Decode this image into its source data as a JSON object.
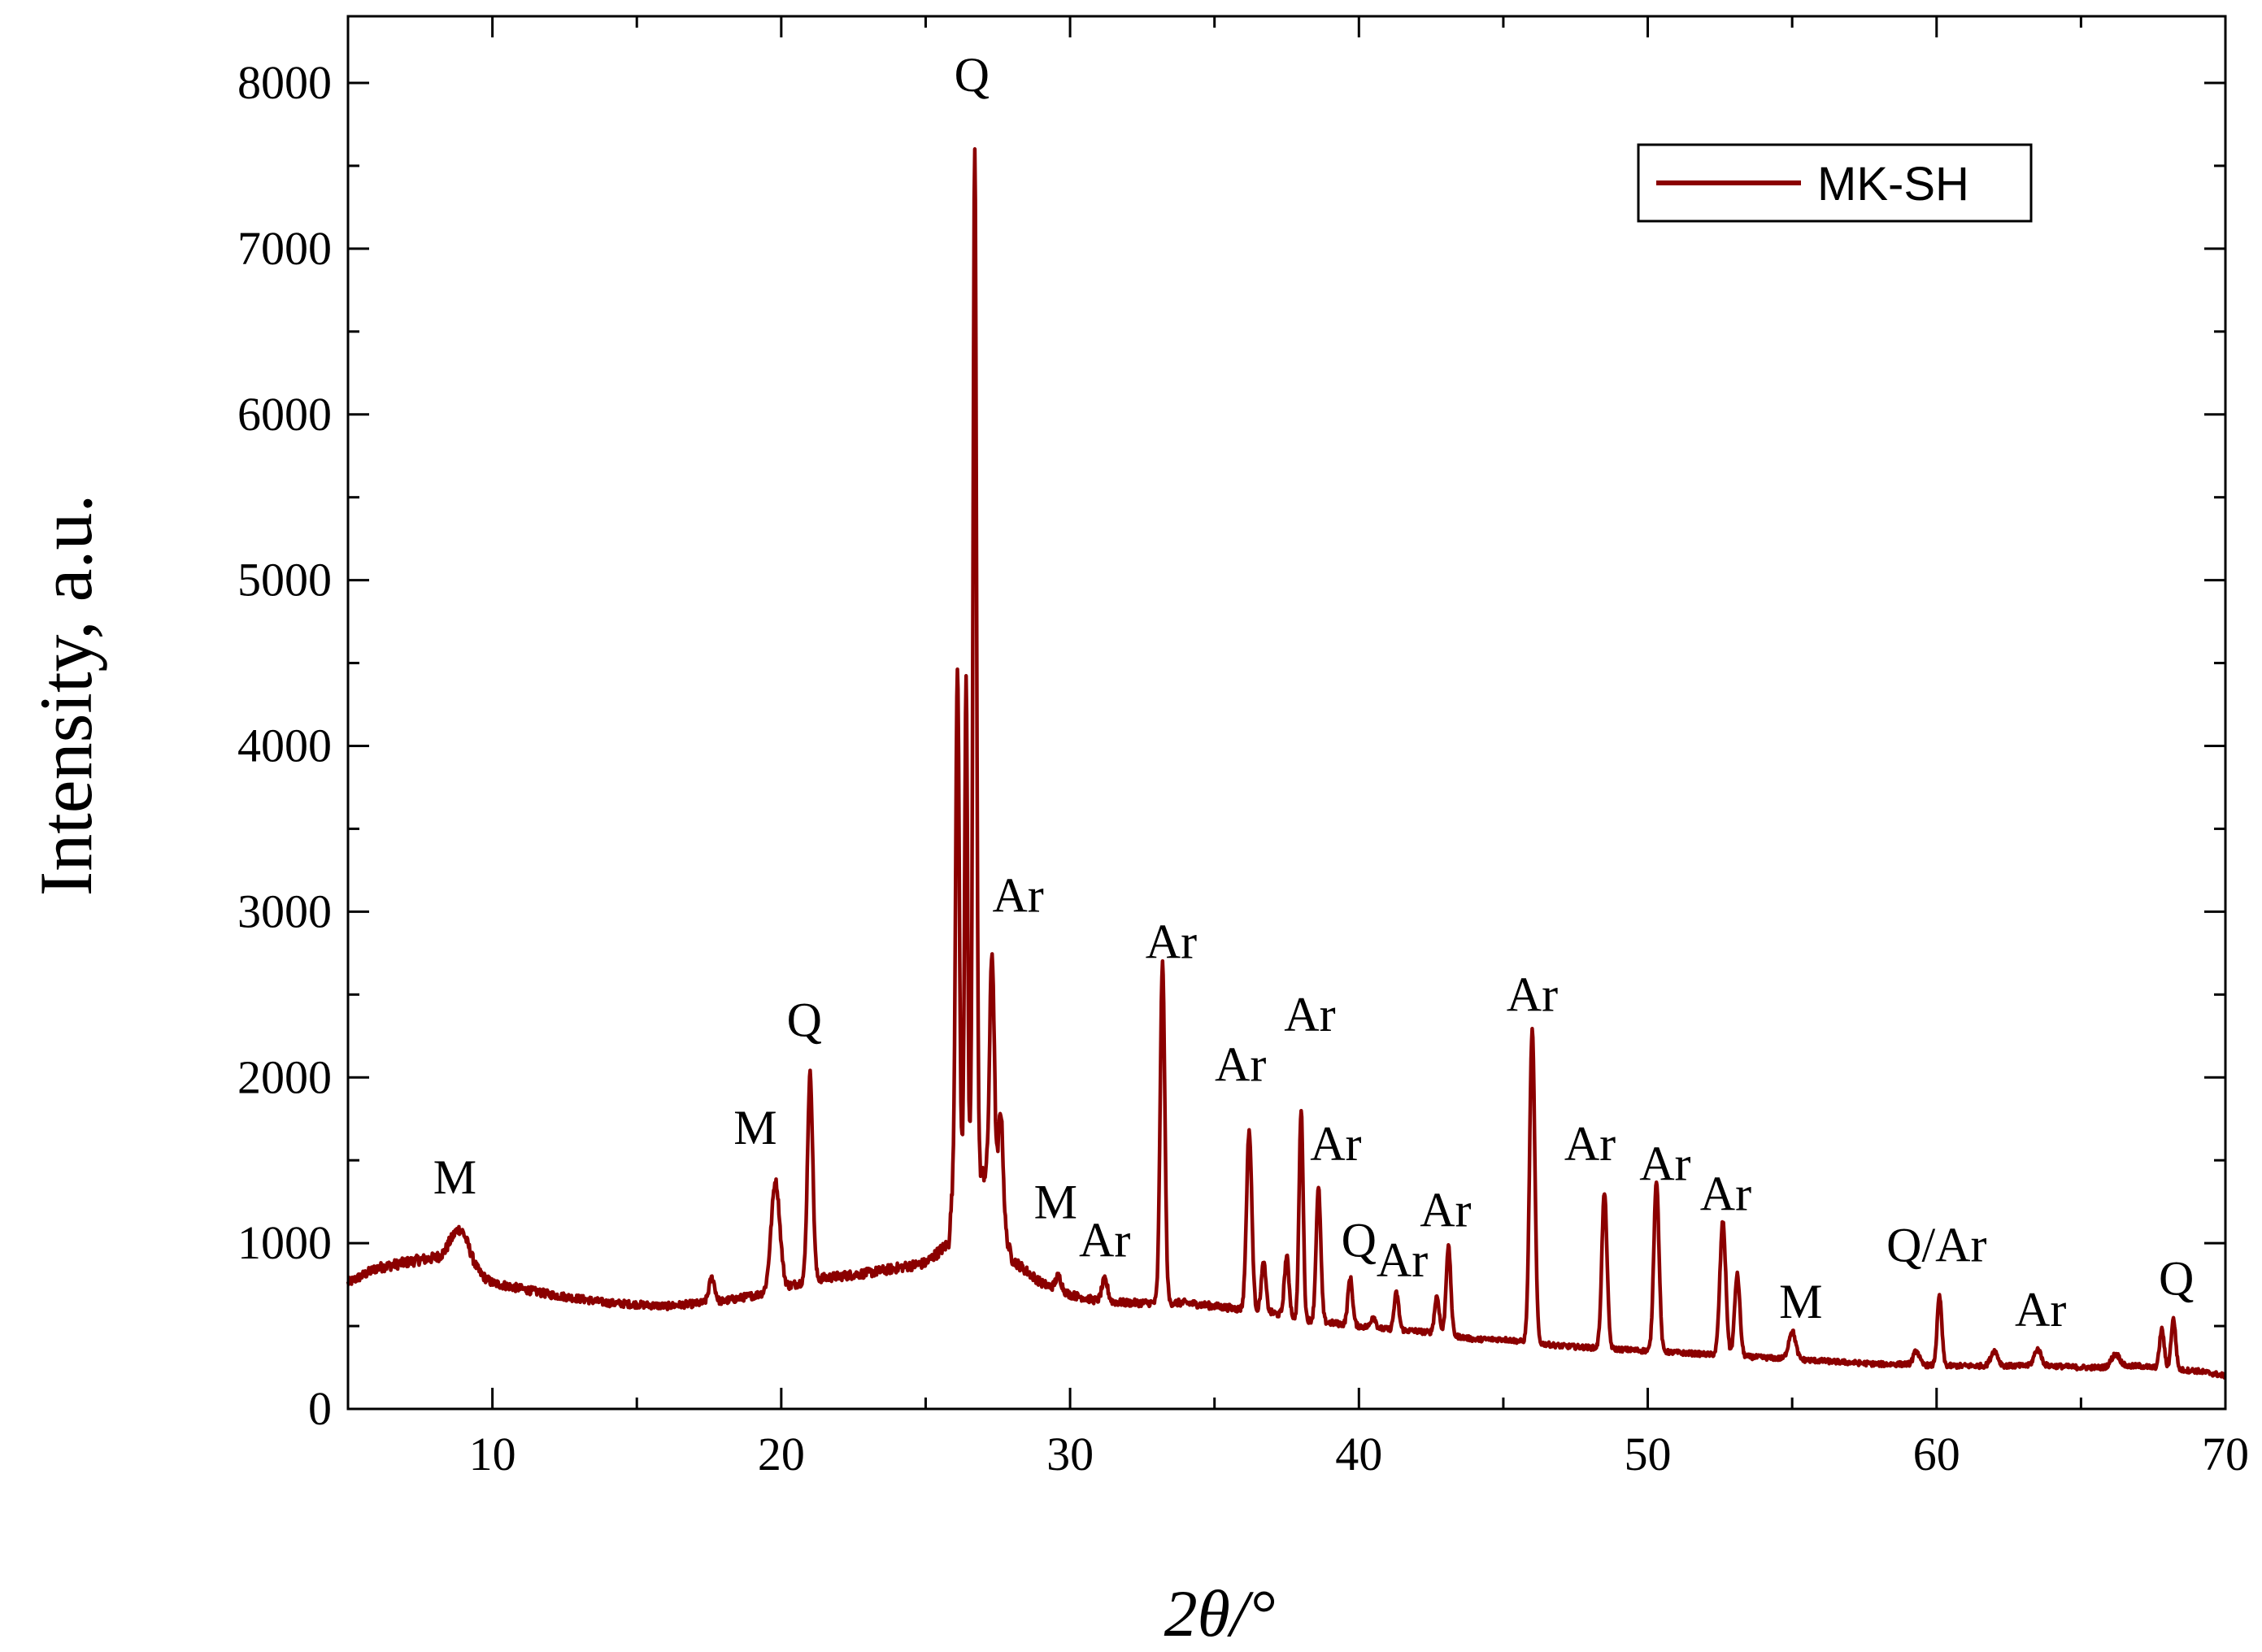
{
  "chart_data": {
    "type": "line",
    "title": "",
    "xlabel": "2θ/°",
    "ylabel": "Intensity, a.u.",
    "xlim": [
      5,
      70
    ],
    "ylim": [
      0,
      8000
    ],
    "x_ticks": [
      10,
      20,
      30,
      40,
      50,
      60,
      70
    ],
    "y_ticks": [
      0,
      1000,
      2000,
      3000,
      4000,
      5000,
      6000,
      7000,
      8000
    ],
    "series": [
      {
        "name": "MK-SH",
        "color": "#8b0000",
        "baseline": [
          [
            5,
            760
          ],
          [
            6,
            850
          ],
          [
            7.5,
            900
          ],
          [
            8.5,
            920
          ],
          [
            10,
            760
          ],
          [
            12,
            690
          ],
          [
            14,
            640
          ],
          [
            16,
            620
          ],
          [
            18,
            650
          ],
          [
            19.5,
            700
          ],
          [
            21,
            780
          ],
          [
            23,
            820
          ],
          [
            25,
            880
          ],
          [
            25.8,
            1000
          ],
          [
            26,
            1500
          ],
          [
            27.2,
            1400
          ],
          [
            28,
            900
          ],
          [
            29,
            760
          ],
          [
            30,
            690
          ],
          [
            31,
            650
          ],
          [
            32,
            640
          ],
          [
            33,
            640
          ],
          [
            34,
            640
          ],
          [
            35,
            620
          ],
          [
            36,
            600
          ],
          [
            37,
            580
          ],
          [
            38,
            540
          ],
          [
            39,
            520
          ],
          [
            40,
            500
          ],
          [
            41,
            480
          ],
          [
            42,
            470
          ],
          [
            43,
            450
          ],
          [
            44,
            420
          ],
          [
            45,
            420
          ],
          [
            46,
            400
          ],
          [
            47,
            380
          ],
          [
            48,
            370
          ],
          [
            49,
            360
          ],
          [
            50,
            350
          ],
          [
            51,
            340
          ],
          [
            52,
            330
          ],
          [
            53,
            320
          ],
          [
            54,
            310
          ],
          [
            55,
            300
          ],
          [
            56,
            290
          ],
          [
            57,
            280
          ],
          [
            58,
            270
          ],
          [
            59,
            270
          ],
          [
            60,
            260
          ],
          [
            61,
            260
          ],
          [
            62,
            260
          ],
          [
            63,
            260
          ],
          [
            64,
            260
          ],
          [
            65,
            250
          ],
          [
            66,
            250
          ],
          [
            67,
            260
          ],
          [
            68,
            240
          ],
          [
            69,
            230
          ],
          [
            70,
            200
          ]
        ],
        "peaks": [
          {
            "x": 8.9,
            "y": 1080,
            "w": 0.3
          },
          {
            "x": 17.6,
            "y": 790,
            "w": 0.1
          },
          {
            "x": 19.8,
            "y": 1370,
            "w": 0.15
          },
          {
            "x": 21.0,
            "y": 2020,
            "w": 0.09
          },
          {
            "x": 26.1,
            "y": 4500,
            "w": 0.06
          },
          {
            "x": 26.4,
            "y": 4450,
            "w": 0.05
          },
          {
            "x": 26.7,
            "y": 7600,
            "w": 0.06
          },
          {
            "x": 27.3,
            "y": 2750,
            "w": 0.08
          },
          {
            "x": 27.6,
            "y": 1800,
            "w": 0.08
          },
          {
            "x": 29.6,
            "y": 800,
            "w": 0.1
          },
          {
            "x": 31.2,
            "y": 780,
            "w": 0.1
          },
          {
            "x": 33.2,
            "y": 2680,
            "w": 0.08
          },
          {
            "x": 36.2,
            "y": 1680,
            "w": 0.09
          },
          {
            "x": 36.7,
            "y": 880,
            "w": 0.08
          },
          {
            "x": 37.5,
            "y": 920,
            "w": 0.08
          },
          {
            "x": 38.0,
            "y": 1800,
            "w": 0.07
          },
          {
            "x": 38.6,
            "y": 1330,
            "w": 0.08
          },
          {
            "x": 39.7,
            "y": 790,
            "w": 0.08
          },
          {
            "x": 40.5,
            "y": 560,
            "w": 0.08
          },
          {
            "x": 41.3,
            "y": 700,
            "w": 0.08
          },
          {
            "x": 42.7,
            "y": 680,
            "w": 0.08
          },
          {
            "x": 43.1,
            "y": 980,
            "w": 0.08
          },
          {
            "x": 46.0,
            "y": 2280,
            "w": 0.09
          },
          {
            "x": 48.5,
            "y": 1300,
            "w": 0.09
          },
          {
            "x": 50.3,
            "y": 1380,
            "w": 0.09
          },
          {
            "x": 52.6,
            "y": 1130,
            "w": 0.1
          },
          {
            "x": 53.1,
            "y": 810,
            "w": 0.09
          },
          {
            "x": 55.0,
            "y": 470,
            "w": 0.12
          },
          {
            "x": 59.3,
            "y": 350,
            "w": 0.1
          },
          {
            "x": 60.1,
            "y": 680,
            "w": 0.08
          },
          {
            "x": 62.0,
            "y": 350,
            "w": 0.12
          },
          {
            "x": 63.5,
            "y": 360,
            "w": 0.12
          },
          {
            "x": 66.2,
            "y": 330,
            "w": 0.15
          },
          {
            "x": 67.8,
            "y": 480,
            "w": 0.08
          },
          {
            "x": 68.2,
            "y": 540,
            "w": 0.08
          }
        ]
      }
    ],
    "legend": {
      "placement": "top-right",
      "entries": [
        "MK-SH"
      ]
    },
    "annotations": [
      {
        "text": "M",
        "x": 8.7,
        "y": 1300
      },
      {
        "text": "M",
        "x": 19.1,
        "y": 1600
      },
      {
        "text": "Q",
        "x": 20.8,
        "y": 2250
      },
      {
        "text": "Q",
        "x": 26.6,
        "y": 7950
      },
      {
        "text": "Ar",
        "x": 28.2,
        "y": 3000
      },
      {
        "text": "M",
        "x": 29.5,
        "y": 1150
      },
      {
        "text": "Ar",
        "x": 31.2,
        "y": 920
      },
      {
        "text": "Ar",
        "x": 33.5,
        "y": 2720
      },
      {
        "text": "Ar",
        "x": 35.9,
        "y": 1980
      },
      {
        "text": "Ar",
        "x": 38.3,
        "y": 2280
      },
      {
        "text": "Ar",
        "x": 39.2,
        "y": 1500
      },
      {
        "text": "Q",
        "x": 40.0,
        "y": 920
      },
      {
        "text": "Ar",
        "x": 41.5,
        "y": 800
      },
      {
        "text": "Ar",
        "x": 43.0,
        "y": 1100
      },
      {
        "text": "Ar",
        "x": 46.0,
        "y": 2400
      },
      {
        "text": "Ar",
        "x": 48.0,
        "y": 1500
      },
      {
        "text": "Ar",
        "x": 50.6,
        "y": 1380
      },
      {
        "text": "Ar",
        "x": 52.7,
        "y": 1200
      },
      {
        "text": "M",
        "x": 55.3,
        "y": 550
      },
      {
        "text": "Q/Ar",
        "x": 60.0,
        "y": 890
      },
      {
        "text": "Ar",
        "x": 63.6,
        "y": 500
      },
      {
        "text": "Q",
        "x": 68.3,
        "y": 690
      }
    ]
  }
}
